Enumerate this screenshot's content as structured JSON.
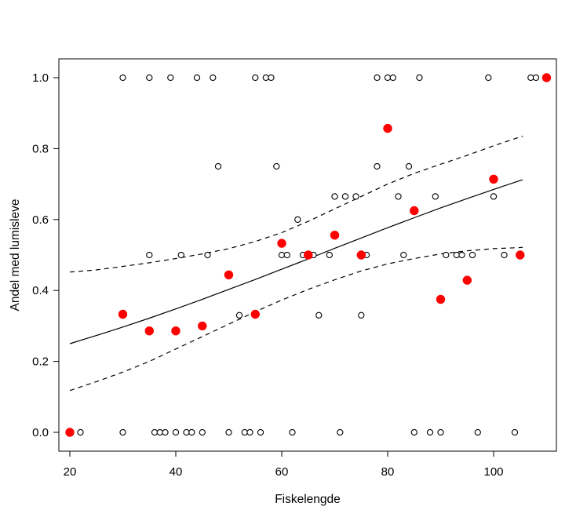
{
  "figure": {
    "background": "#ffffff",
    "point_color_open": "#000000",
    "point_color_filled": "#ff0000",
    "line_color": "#000000"
  },
  "chart_data": {
    "type": "scatter",
    "title": "",
    "xlabel": "Fiskelengde",
    "ylabel": "Andel med lumisleve",
    "xlim": [
      17.9,
      112.1
    ],
    "ylim": [
      -0.053,
      1.053
    ],
    "x_ticks": [
      20,
      40,
      60,
      80,
      100
    ],
    "x_tick_labels": [
      "20",
      "40",
      "60",
      "80",
      "100"
    ],
    "y_ticks": [
      0.0,
      0.2,
      0.4,
      0.6,
      0.8,
      1.0
    ],
    "y_tick_labels": [
      "0.0",
      "0.2",
      "0.4",
      "0.6",
      "0.8",
      "1.0"
    ],
    "grid": false,
    "legend_position": "none",
    "series": [
      {
        "name": "observations-open-circles",
        "type": "points",
        "marker": "open-circle",
        "color": "#000000",
        "points": [
          [
            30,
            1
          ],
          [
            35,
            1
          ],
          [
            39,
            1
          ],
          [
            44,
            1
          ],
          [
            47,
            1
          ],
          [
            55,
            1
          ],
          [
            57,
            1
          ],
          [
            58,
            1
          ],
          [
            78,
            1
          ],
          [
            80,
            1
          ],
          [
            81,
            1
          ],
          [
            86,
            1
          ],
          [
            99,
            1
          ],
          [
            107,
            1
          ],
          [
            108,
            1
          ],
          [
            22,
            0
          ],
          [
            30,
            0
          ],
          [
            36,
            0
          ],
          [
            37,
            0
          ],
          [
            38,
            0
          ],
          [
            40,
            0
          ],
          [
            42,
            0
          ],
          [
            43,
            0
          ],
          [
            45,
            0
          ],
          [
            50,
            0
          ],
          [
            53,
            0
          ],
          [
            54,
            0
          ],
          [
            56,
            0
          ],
          [
            62,
            0
          ],
          [
            71,
            0
          ],
          [
            85,
            0
          ],
          [
            88,
            0
          ],
          [
            90,
            0
          ],
          [
            97,
            0
          ],
          [
            104,
            0
          ],
          [
            35,
            0.5
          ],
          [
            41,
            0.5
          ],
          [
            46,
            0.5
          ],
          [
            48,
            0.75
          ],
          [
            52,
            0.33
          ],
          [
            59,
            0.75
          ],
          [
            60,
            0.5
          ],
          [
            61,
            0.5
          ],
          [
            63,
            0.6
          ],
          [
            64,
            0.5
          ],
          [
            66,
            0.5
          ],
          [
            67,
            0.33
          ],
          [
            69,
            0.5
          ],
          [
            70,
            0.665
          ],
          [
            72,
            0.665
          ],
          [
            74,
            0.665
          ],
          [
            75,
            0.33
          ],
          [
            76,
            0.5
          ],
          [
            78,
            0.75
          ],
          [
            82,
            0.665
          ],
          [
            83,
            0.5
          ],
          [
            84,
            0.75
          ],
          [
            89,
            0.665
          ],
          [
            91,
            0.5
          ],
          [
            93,
            0.5
          ],
          [
            94,
            0.5
          ],
          [
            96,
            0.5
          ],
          [
            100,
            0.665
          ],
          [
            102,
            0.5
          ]
        ]
      },
      {
        "name": "group-proportions-red",
        "type": "points",
        "marker": "filled-circle",
        "color": "#ff0000",
        "points": [
          [
            20,
            0
          ],
          [
            30,
            0.333
          ],
          [
            35,
            0.286
          ],
          [
            40,
            0.286
          ],
          [
            45,
            0.3
          ],
          [
            50,
            0.444
          ],
          [
            55,
            0.333
          ],
          [
            60,
            0.533
          ],
          [
            65,
            0.5
          ],
          [
            70,
            0.556
          ],
          [
            75,
            0.5
          ],
          [
            80,
            0.857
          ],
          [
            85,
            0.625
          ],
          [
            90,
            0.375
          ],
          [
            95,
            0.429
          ],
          [
            100,
            0.714
          ],
          [
            105,
            0.5
          ],
          [
            110,
            1
          ]
        ]
      },
      {
        "name": "logistic-fit",
        "type": "line",
        "style": "solid",
        "color": "#000000",
        "points": [
          [
            20,
            0.25
          ],
          [
            25,
            0.273
          ],
          [
            30,
            0.297
          ],
          [
            35,
            0.322
          ],
          [
            40,
            0.348
          ],
          [
            45,
            0.375
          ],
          [
            50,
            0.403
          ],
          [
            55,
            0.431
          ],
          [
            60,
            0.46
          ],
          [
            65,
            0.489
          ],
          [
            70,
            0.519
          ],
          [
            75,
            0.548
          ],
          [
            80,
            0.577
          ],
          [
            85,
            0.605
          ],
          [
            90,
            0.633
          ],
          [
            95,
            0.659
          ],
          [
            100,
            0.685
          ],
          [
            105,
            0.71
          ],
          [
            105.5,
            0.712
          ]
        ]
      },
      {
        "name": "confidence-upper",
        "type": "line",
        "style": "dashed",
        "color": "#000000",
        "points": [
          [
            20,
            0.452
          ],
          [
            25,
            0.458
          ],
          [
            30,
            0.468
          ],
          [
            35,
            0.478
          ],
          [
            40,
            0.49
          ],
          [
            45,
            0.503
          ],
          [
            50,
            0.518
          ],
          [
            55,
            0.538
          ],
          [
            60,
            0.563
          ],
          [
            65,
            0.595
          ],
          [
            70,
            0.63
          ],
          [
            75,
            0.665
          ],
          [
            80,
            0.7
          ],
          [
            85,
            0.73
          ],
          [
            90,
            0.756
          ],
          [
            95,
            0.781
          ],
          [
            100,
            0.808
          ],
          [
            105,
            0.833
          ],
          [
            105.5,
            0.835
          ]
        ]
      },
      {
        "name": "confidence-lower",
        "type": "line",
        "style": "dashed",
        "color": "#000000",
        "points": [
          [
            20,
            0.118
          ],
          [
            25,
            0.143
          ],
          [
            30,
            0.17
          ],
          [
            35,
            0.2
          ],
          [
            40,
            0.235
          ],
          [
            45,
            0.27
          ],
          [
            50,
            0.305
          ],
          [
            55,
            0.34
          ],
          [
            60,
            0.373
          ],
          [
            65,
            0.403
          ],
          [
            70,
            0.43
          ],
          [
            75,
            0.455
          ],
          [
            80,
            0.475
          ],
          [
            85,
            0.49
          ],
          [
            90,
            0.503
          ],
          [
            95,
            0.512
          ],
          [
            100,
            0.518
          ],
          [
            105,
            0.521
          ],
          [
            105.5,
            0.522
          ]
        ]
      }
    ]
  }
}
